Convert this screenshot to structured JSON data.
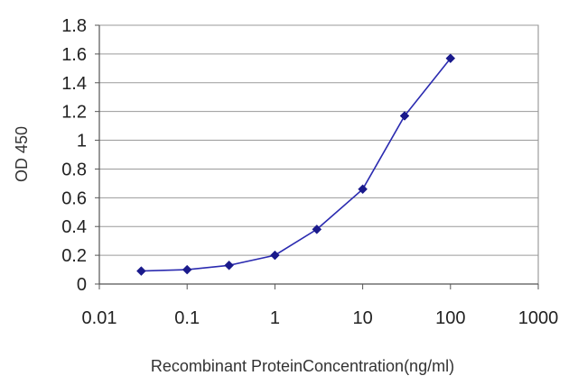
{
  "chart_data": {
    "type": "line",
    "title": "",
    "xlabel": "Recombinant ProteinConcentration(ng/ml)",
    "ylabel": "OD 450",
    "x_scale": "log",
    "xlim": [
      0.01,
      1000
    ],
    "ylim": [
      0,
      1.8
    ],
    "x_ticks": [
      "0.01",
      "0.1",
      "1",
      "10",
      "100",
      "1000"
    ],
    "y_ticks": [
      "0",
      "0.2",
      "0.4",
      "0.6",
      "0.8",
      "1",
      "1.2",
      "1.4",
      "1.6",
      "1.8"
    ],
    "grid": "horizontal",
    "legend": "none",
    "series": [
      {
        "color": "#2b2bb0",
        "x": [
          0.03,
          0.1,
          0.3,
          1,
          3,
          10,
          30,
          100
        ],
        "y": [
          0.09,
          0.1,
          0.13,
          0.2,
          0.38,
          0.66,
          1.17,
          1.57
        ]
      }
    ]
  }
}
